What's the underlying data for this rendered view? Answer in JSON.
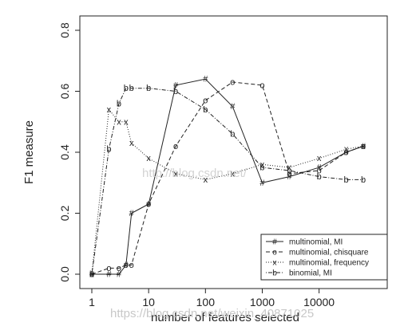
{
  "chart_data": {
    "type": "line",
    "xlabel": "number of features selected",
    "ylabel": "F1 measure",
    "xscale": "log",
    "xlim": [
      1,
      40000
    ],
    "ylim": [
      0,
      0.8
    ],
    "xticks": [
      1,
      10,
      100,
      1000,
      10000
    ],
    "xtick_labels": [
      "1",
      "10",
      "100",
      "1000",
      "10000"
    ],
    "yticks": [
      0.0,
      0.2,
      0.4,
      0.6,
      0.8
    ],
    "ytick_labels": [
      "0.0",
      "0.2",
      "0.4",
      "0.6",
      "0.8"
    ],
    "legend_position": "bottom-right",
    "series": [
      {
        "name": "multinomial, MI",
        "line": "solid",
        "marker": "#",
        "x": [
          1,
          2,
          3,
          4,
          5,
          10,
          30,
          100,
          300,
          1000,
          3000,
          10000,
          30000,
          60000
        ],
        "y": [
          0.0,
          0.0,
          0.0,
          0.03,
          0.2,
          0.23,
          0.62,
          0.64,
          0.55,
          0.3,
          0.32,
          0.35,
          0.4,
          0.42
        ]
      },
      {
        "name": "multinomial, chisquare",
        "line": "dashed",
        "marker": "o",
        "x": [
          1,
          2,
          3,
          4,
          5,
          10,
          30,
          100,
          300,
          1000,
          3000,
          10000,
          30000,
          60000
        ],
        "y": [
          0.0,
          0.02,
          0.02,
          0.03,
          0.03,
          0.23,
          0.42,
          0.57,
          0.63,
          0.62,
          0.33,
          0.34,
          0.4,
          0.42
        ]
      },
      {
        "name": "multinomial, frequency",
        "line": "dotted",
        "marker": "x",
        "x": [
          1,
          2,
          3,
          4,
          5,
          10,
          30,
          100,
          300,
          1000,
          3000,
          10000,
          30000,
          60000
        ],
        "y": [
          0.0,
          0.54,
          0.5,
          0.5,
          0.43,
          0.38,
          0.33,
          0.31,
          0.33,
          0.36,
          0.35,
          0.38,
          0.41,
          0.42
        ]
      },
      {
        "name": "binomial, MI",
        "line": "dotdash",
        "marker": "b",
        "x": [
          1,
          2,
          3,
          4,
          5,
          10,
          30,
          100,
          300,
          1000,
          3000,
          10000,
          30000,
          60000
        ],
        "y": [
          0.0,
          0.41,
          0.56,
          0.61,
          0.61,
          0.61,
          0.6,
          0.54,
          0.46,
          0.35,
          0.34,
          0.32,
          0.31,
          0.31
        ]
      }
    ]
  }
}
